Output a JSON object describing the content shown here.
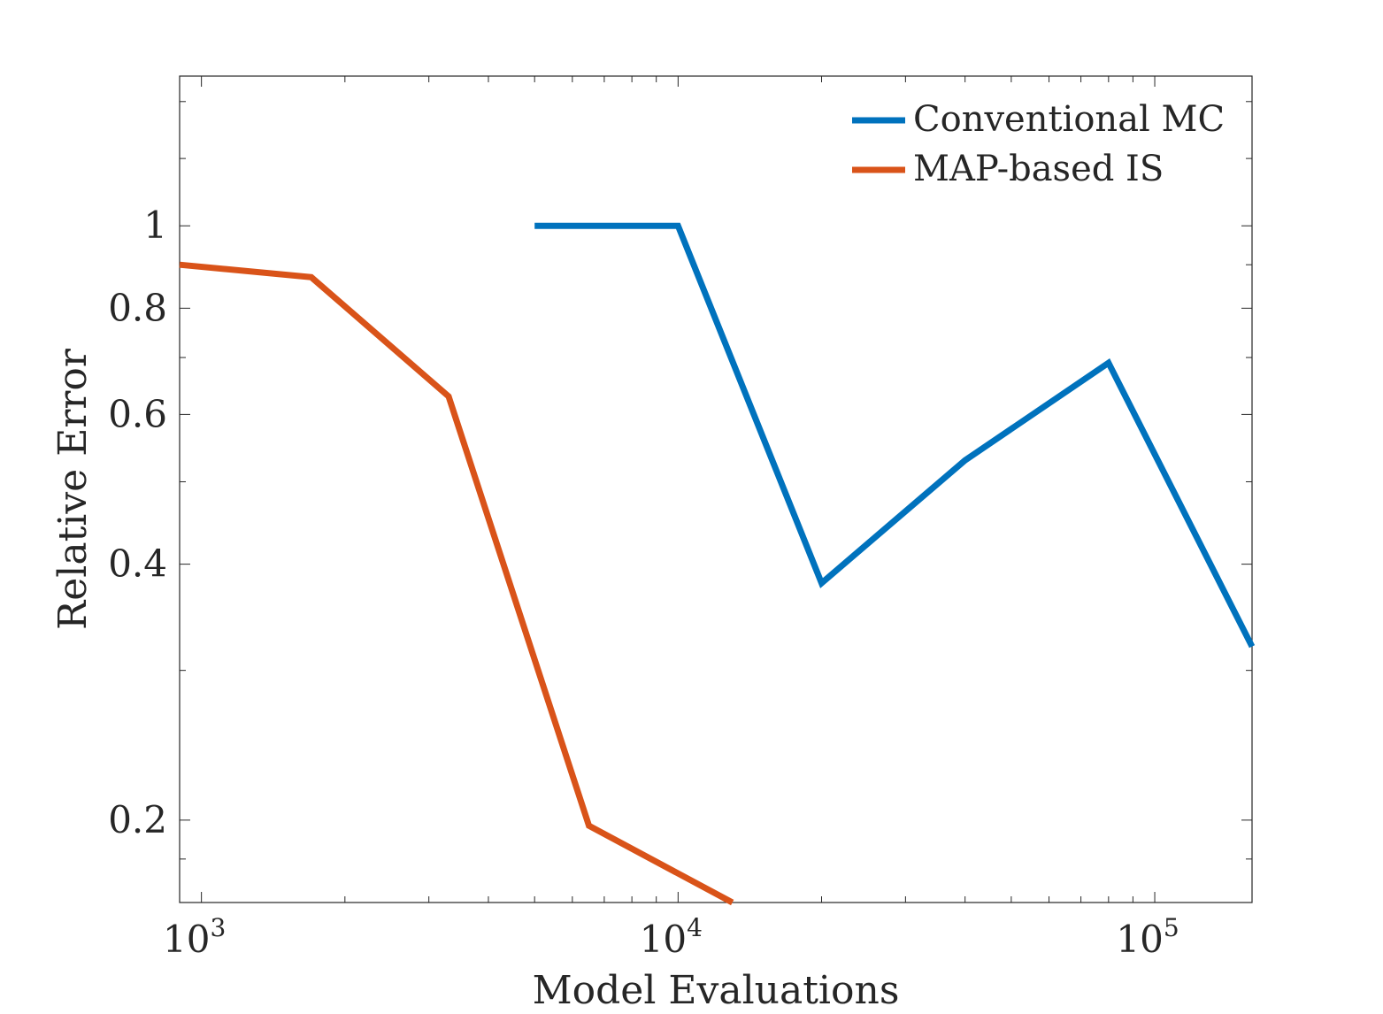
{
  "chart_data": {
    "type": "line",
    "xscale": "log",
    "yscale": "log",
    "xlabel": "Model Evaluations",
    "ylabel": "Relative Error",
    "xlim": [
      900,
      160000
    ],
    "ylim": [
      0.16,
      1.5
    ],
    "xticks": [
      {
        "value": 1000,
        "base": "10",
        "exp": "3"
      },
      {
        "value": 10000,
        "base": "10",
        "exp": "4"
      },
      {
        "value": 100000,
        "base": "10",
        "exp": "5"
      }
    ],
    "yticks": [
      {
        "value": 0.2,
        "label": "0.2"
      },
      {
        "value": 0.4,
        "label": "0.4"
      },
      {
        "value": 0.6,
        "label": "0.6"
      },
      {
        "value": 0.8,
        "label": "0.8"
      },
      {
        "value": 1,
        "label": "1"
      }
    ],
    "legend_position": "top-right",
    "series": [
      {
        "name": "Conventional MC",
        "color": "#0072BD",
        "x": [
          5000,
          10000,
          20000,
          40000,
          80000,
          160000
        ],
        "y": [
          1.0,
          1.0,
          0.38,
          0.53,
          0.69,
          0.32
        ]
      },
      {
        "name": "MAP-based IS",
        "color": "#D95319",
        "x": [
          900,
          1700,
          3300,
          6500,
          13000
        ],
        "y": [
          0.9,
          0.87,
          0.63,
          0.197,
          0.16
        ]
      }
    ]
  }
}
